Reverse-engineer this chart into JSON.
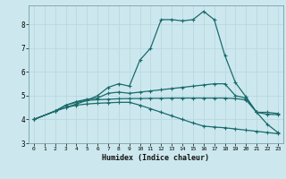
{
  "xlabel": "Humidex (Indice chaleur)",
  "bg_color": "#cce8ee",
  "grid_color": "#b8d8e0",
  "line_color": "#1a6b6b",
  "xlim": [
    -0.5,
    23.5
  ],
  "ylim": [
    3.0,
    8.8
  ],
  "yticks": [
    3,
    4,
    5,
    6,
    7,
    8
  ],
  "xticks": [
    0,
    1,
    2,
    3,
    4,
    5,
    6,
    7,
    8,
    9,
    10,
    11,
    12,
    13,
    14,
    15,
    16,
    17,
    18,
    19,
    20,
    21,
    22,
    23
  ],
  "line1": [
    [
      0,
      4.0
    ],
    [
      2,
      4.35
    ],
    [
      3,
      4.5
    ],
    [
      4,
      4.65
    ],
    [
      5,
      4.8
    ],
    [
      6,
      5.0
    ],
    [
      7,
      5.35
    ],
    [
      8,
      5.5
    ],
    [
      9,
      5.4
    ],
    [
      10,
      6.5
    ],
    [
      11,
      7.0
    ],
    [
      12,
      8.2
    ],
    [
      13,
      8.2
    ],
    [
      14,
      8.15
    ],
    [
      15,
      8.2
    ],
    [
      16,
      8.55
    ],
    [
      17,
      8.2
    ],
    [
      18,
      6.7
    ],
    [
      19,
      5.55
    ],
    [
      20,
      4.95
    ],
    [
      21,
      4.3
    ],
    [
      22,
      3.8
    ],
    [
      23,
      3.45
    ]
  ],
  "line2": [
    [
      0,
      4.0
    ],
    [
      2,
      4.35
    ],
    [
      3,
      4.6
    ],
    [
      4,
      4.75
    ],
    [
      5,
      4.85
    ],
    [
      6,
      4.9
    ],
    [
      7,
      5.1
    ],
    [
      8,
      5.15
    ],
    [
      9,
      5.1
    ],
    [
      10,
      5.15
    ],
    [
      11,
      5.2
    ],
    [
      12,
      5.25
    ],
    [
      13,
      5.3
    ],
    [
      14,
      5.35
    ],
    [
      15,
      5.4
    ],
    [
      16,
      5.45
    ],
    [
      17,
      5.5
    ],
    [
      18,
      5.5
    ],
    [
      19,
      5.0
    ],
    [
      20,
      4.9
    ],
    [
      21,
      4.3
    ],
    [
      22,
      4.3
    ],
    [
      23,
      4.25
    ]
  ],
  "line3": [
    [
      0,
      4.0
    ],
    [
      2,
      4.35
    ],
    [
      3,
      4.6
    ],
    [
      4,
      4.72
    ],
    [
      5,
      4.8
    ],
    [
      6,
      4.83
    ],
    [
      7,
      4.85
    ],
    [
      8,
      4.87
    ],
    [
      9,
      4.88
    ],
    [
      10,
      4.88
    ],
    [
      11,
      4.89
    ],
    [
      12,
      4.89
    ],
    [
      13,
      4.9
    ],
    [
      14,
      4.9
    ],
    [
      15,
      4.9
    ],
    [
      16,
      4.9
    ],
    [
      17,
      4.9
    ],
    [
      18,
      4.9
    ],
    [
      19,
      4.88
    ],
    [
      20,
      4.82
    ],
    [
      21,
      4.3
    ],
    [
      22,
      4.22
    ],
    [
      23,
      4.2
    ]
  ],
  "line4": [
    [
      0,
      4.0
    ],
    [
      2,
      4.35
    ],
    [
      3,
      4.5
    ],
    [
      4,
      4.6
    ],
    [
      5,
      4.65
    ],
    [
      6,
      4.68
    ],
    [
      7,
      4.7
    ],
    [
      8,
      4.72
    ],
    [
      9,
      4.72
    ],
    [
      10,
      4.6
    ],
    [
      11,
      4.45
    ],
    [
      12,
      4.3
    ],
    [
      13,
      4.15
    ],
    [
      14,
      4.0
    ],
    [
      15,
      3.85
    ],
    [
      16,
      3.72
    ],
    [
      17,
      3.68
    ],
    [
      18,
      3.65
    ],
    [
      19,
      3.6
    ],
    [
      20,
      3.55
    ],
    [
      21,
      3.5
    ],
    [
      22,
      3.45
    ],
    [
      23,
      3.4
    ]
  ]
}
